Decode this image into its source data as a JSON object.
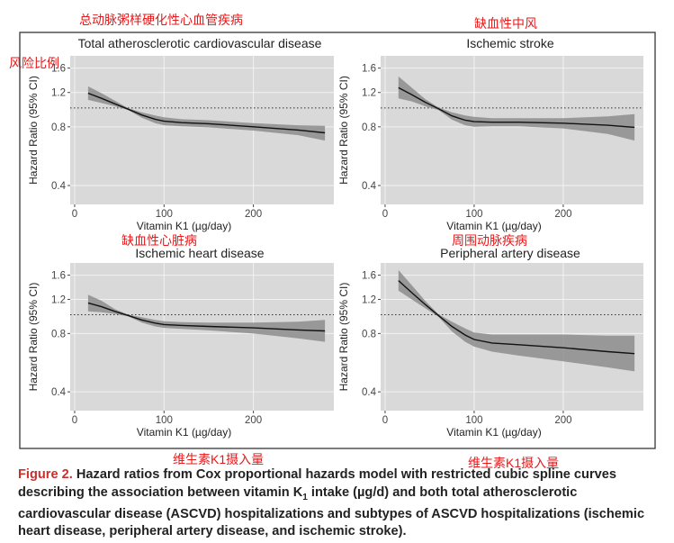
{
  "chart_data": [
    {
      "type": "line",
      "title": "Total atherosclerotic cardiovascular disease",
      "annotation": "总动脉粥样硬化性心血管疾病",
      "xlabel": "Vitamin K1 (µg/day)",
      "ylabel": "Hazard Ratio (95% CI)",
      "x_ticks": [
        0,
        100,
        200
      ],
      "y_ticks": [
        0.4,
        0.8,
        1.2,
        1.6
      ],
      "y_scale": "log",
      "xlim": [
        -5,
        290
      ],
      "ylim": [
        0.32,
        1.85
      ],
      "reference_line": 1.0,
      "x": [
        15,
        30,
        45,
        60,
        75,
        90,
        100,
        120,
        150,
        200,
        250,
        280
      ],
      "y": [
        1.19,
        1.12,
        1.05,
        0.985,
        0.92,
        0.875,
        0.855,
        0.84,
        0.83,
        0.8,
        0.77,
        0.745
      ],
      "lower": [
        1.1,
        1.06,
        1.02,
        0.975,
        0.89,
        0.835,
        0.815,
        0.805,
        0.795,
        0.765,
        0.725,
        0.68
      ],
      "upper": [
        1.29,
        1.19,
        1.09,
        0.995,
        0.95,
        0.915,
        0.895,
        0.875,
        0.865,
        0.835,
        0.815,
        0.81
      ]
    },
    {
      "type": "line",
      "title": "Ischemic stroke",
      "annotation": "缺血性中风",
      "xlabel": "Vitamin K1 (µg/day)",
      "ylabel": "Hazard Ratio (95% CI)",
      "x_ticks": [
        0,
        100,
        200
      ],
      "y_ticks": [
        0.4,
        0.8,
        1.2,
        1.6
      ],
      "y_scale": "log",
      "xlim": [
        -5,
        290
      ],
      "ylim": [
        0.32,
        1.85
      ],
      "reference_line": 1.0,
      "x": [
        15,
        30,
        45,
        60,
        75,
        90,
        100,
        120,
        150,
        200,
        250,
        280
      ],
      "y": [
        1.27,
        1.17,
        1.07,
        0.99,
        0.91,
        0.865,
        0.85,
        0.845,
        0.845,
        0.835,
        0.815,
        0.795
      ],
      "lower": [
        1.12,
        1.08,
        1.02,
        0.975,
        0.87,
        0.815,
        0.8,
        0.805,
        0.805,
        0.785,
        0.735,
        0.68
      ],
      "upper": [
        1.45,
        1.27,
        1.11,
        1.005,
        0.95,
        0.915,
        0.9,
        0.885,
        0.885,
        0.885,
        0.905,
        0.93
      ]
    },
    {
      "type": "line",
      "title": "Ischemic heart disease",
      "annotation": "缺血性心脏病",
      "xlabel": "Vitamin K1 (µg/day)",
      "ylabel": "Hazard Ratio (95% CI)",
      "x_ticks": [
        0,
        100,
        200
      ],
      "y_ticks": [
        0.4,
        0.8,
        1.2,
        1.6
      ],
      "y_scale": "log",
      "xlim": [
        -5,
        290
      ],
      "ylim": [
        0.32,
        1.85
      ],
      "reference_line": 1.0,
      "x": [
        15,
        30,
        45,
        60,
        75,
        90,
        100,
        120,
        150,
        200,
        250,
        280
      ],
      "y": [
        1.15,
        1.1,
        1.04,
        0.99,
        0.94,
        0.905,
        0.89,
        0.88,
        0.87,
        0.855,
        0.835,
        0.825
      ],
      "lower": [
        1.04,
        1.03,
        1.01,
        0.98,
        0.91,
        0.87,
        0.855,
        0.845,
        0.83,
        0.8,
        0.755,
        0.725
      ],
      "upper": [
        1.27,
        1.18,
        1.07,
        1.0,
        0.97,
        0.94,
        0.925,
        0.915,
        0.91,
        0.91,
        0.92,
        0.94
      ]
    },
    {
      "type": "line",
      "title": "Peripheral artery disease",
      "annotation": "周围动脉疾病",
      "xlabel": "Vitamin K1 (µg/day)",
      "ylabel": "Hazard Ratio (95% CI)",
      "x_ticks": [
        0,
        100,
        200
      ],
      "y_ticks": [
        0.4,
        0.8,
        1.2,
        1.6
      ],
      "y_scale": "log",
      "xlim": [
        -5,
        290
      ],
      "ylim": [
        0.32,
        1.85
      ],
      "reference_line": 1.0,
      "x": [
        15,
        30,
        45,
        60,
        75,
        90,
        100,
        120,
        150,
        200,
        250,
        280
      ],
      "y": [
        1.5,
        1.3,
        1.13,
        0.99,
        0.87,
        0.785,
        0.745,
        0.715,
        0.7,
        0.675,
        0.645,
        0.63
      ],
      "lower": [
        1.33,
        1.2,
        1.08,
        0.975,
        0.82,
        0.725,
        0.685,
        0.645,
        0.615,
        0.575,
        0.535,
        0.51
      ],
      "upper": [
        1.7,
        1.42,
        1.18,
        1.005,
        0.92,
        0.85,
        0.81,
        0.79,
        0.79,
        0.79,
        0.78,
        0.78
      ]
    }
  ],
  "annotations": {
    "y_axis_note": "风险比例",
    "x_axis_note_left": "维生素K1摄入量",
    "x_axis_note_right": "维生素K1摄入量"
  },
  "colors": {
    "panel_bg": "#d9d9d9",
    "grid": "#f2f2f2",
    "band": "#8c8c8c",
    "line": "#111111",
    "annotation": "#e8191a",
    "caption_label": "#c8302e"
  },
  "caption": {
    "label": "Figure 2.",
    "text_1": " Hazard ratios from Cox proportional hazards model with restricted cubic spline curves describing the association between vitamin K",
    "subscript": "1",
    "text_2": " intake (µg/d) and both total atherosclerotic cardiovascular disease (ASCVD) hospitalizations and subtypes of ASCVD hospitalizations (ischemic heart disease, peripheral artery disease, and ischemic stroke)."
  }
}
